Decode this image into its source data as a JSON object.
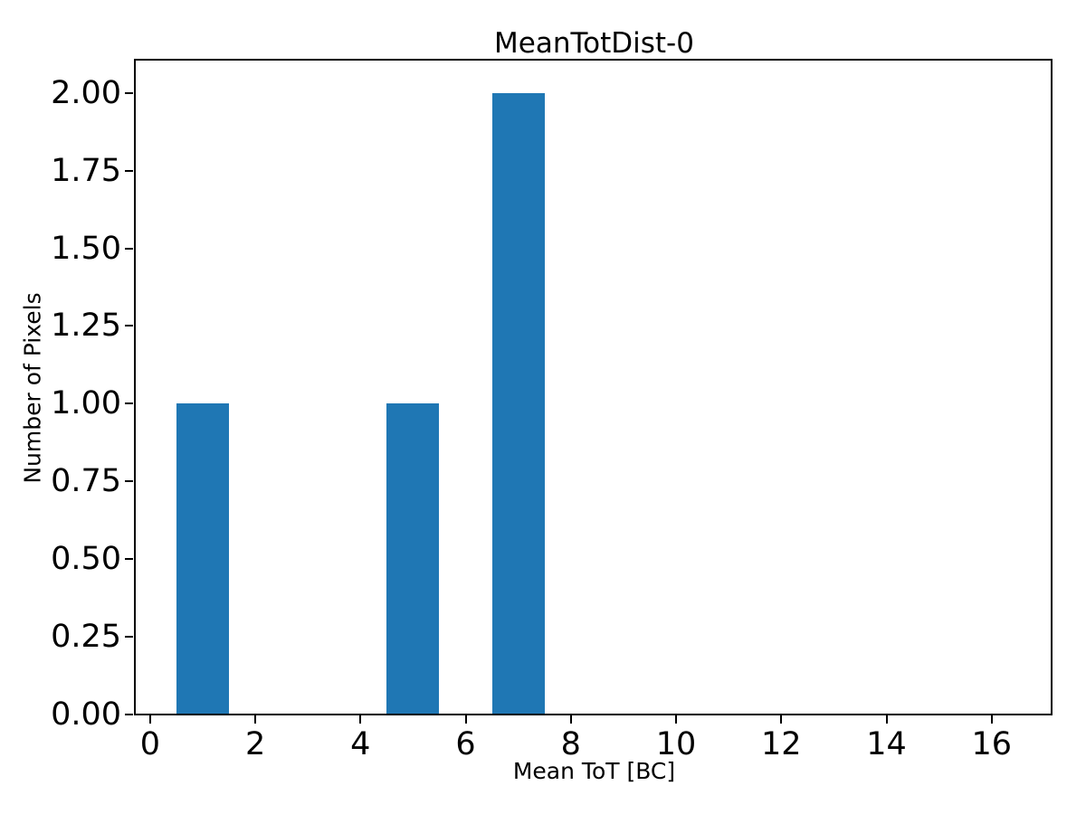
{
  "chart_data": {
    "type": "bar",
    "title": "MeanTotDist-0",
    "xlabel": "Mean ToT [BC]",
    "ylabel": "Number of Pixels",
    "bar_color": "#1f77b4",
    "background_color": "#ffffff",
    "axis_color": "#000000",
    "grid": false,
    "legend": "none",
    "bins": [
      {
        "x_left": 0.5,
        "x_right": 1.5,
        "center": 1,
        "count": 1
      },
      {
        "x_left": 4.5,
        "x_right": 5.5,
        "center": 5,
        "count": 1
      },
      {
        "x_left": 6.5,
        "x_right": 7.5,
        "center": 7,
        "count": 2
      }
    ],
    "bin_centers": [
      1,
      5,
      7
    ],
    "values": [
      1,
      1,
      2
    ],
    "xlim": [
      -0.29,
      17.14
    ],
    "ylim": [
      0,
      2.107
    ],
    "x_ticks": [
      {
        "value": 0,
        "label": "0"
      },
      {
        "value": 2,
        "label": "2"
      },
      {
        "value": 4,
        "label": "4"
      },
      {
        "value": 6,
        "label": "6"
      },
      {
        "value": 8,
        "label": "8"
      },
      {
        "value": 10,
        "label": "10"
      },
      {
        "value": 12,
        "label": "12"
      },
      {
        "value": 14,
        "label": "14"
      },
      {
        "value": 16,
        "label": "16"
      }
    ],
    "y_ticks": [
      {
        "value": 0.0,
        "label": "0.00"
      },
      {
        "value": 0.25,
        "label": "0.25"
      },
      {
        "value": 0.5,
        "label": "0.50"
      },
      {
        "value": 0.75,
        "label": "0.75"
      },
      {
        "value": 1.0,
        "label": "1.00"
      },
      {
        "value": 1.25,
        "label": "1.25"
      },
      {
        "value": 1.5,
        "label": "1.50"
      },
      {
        "value": 1.75,
        "label": "1.75"
      },
      {
        "value": 2.0,
        "label": "2.00"
      }
    ]
  }
}
